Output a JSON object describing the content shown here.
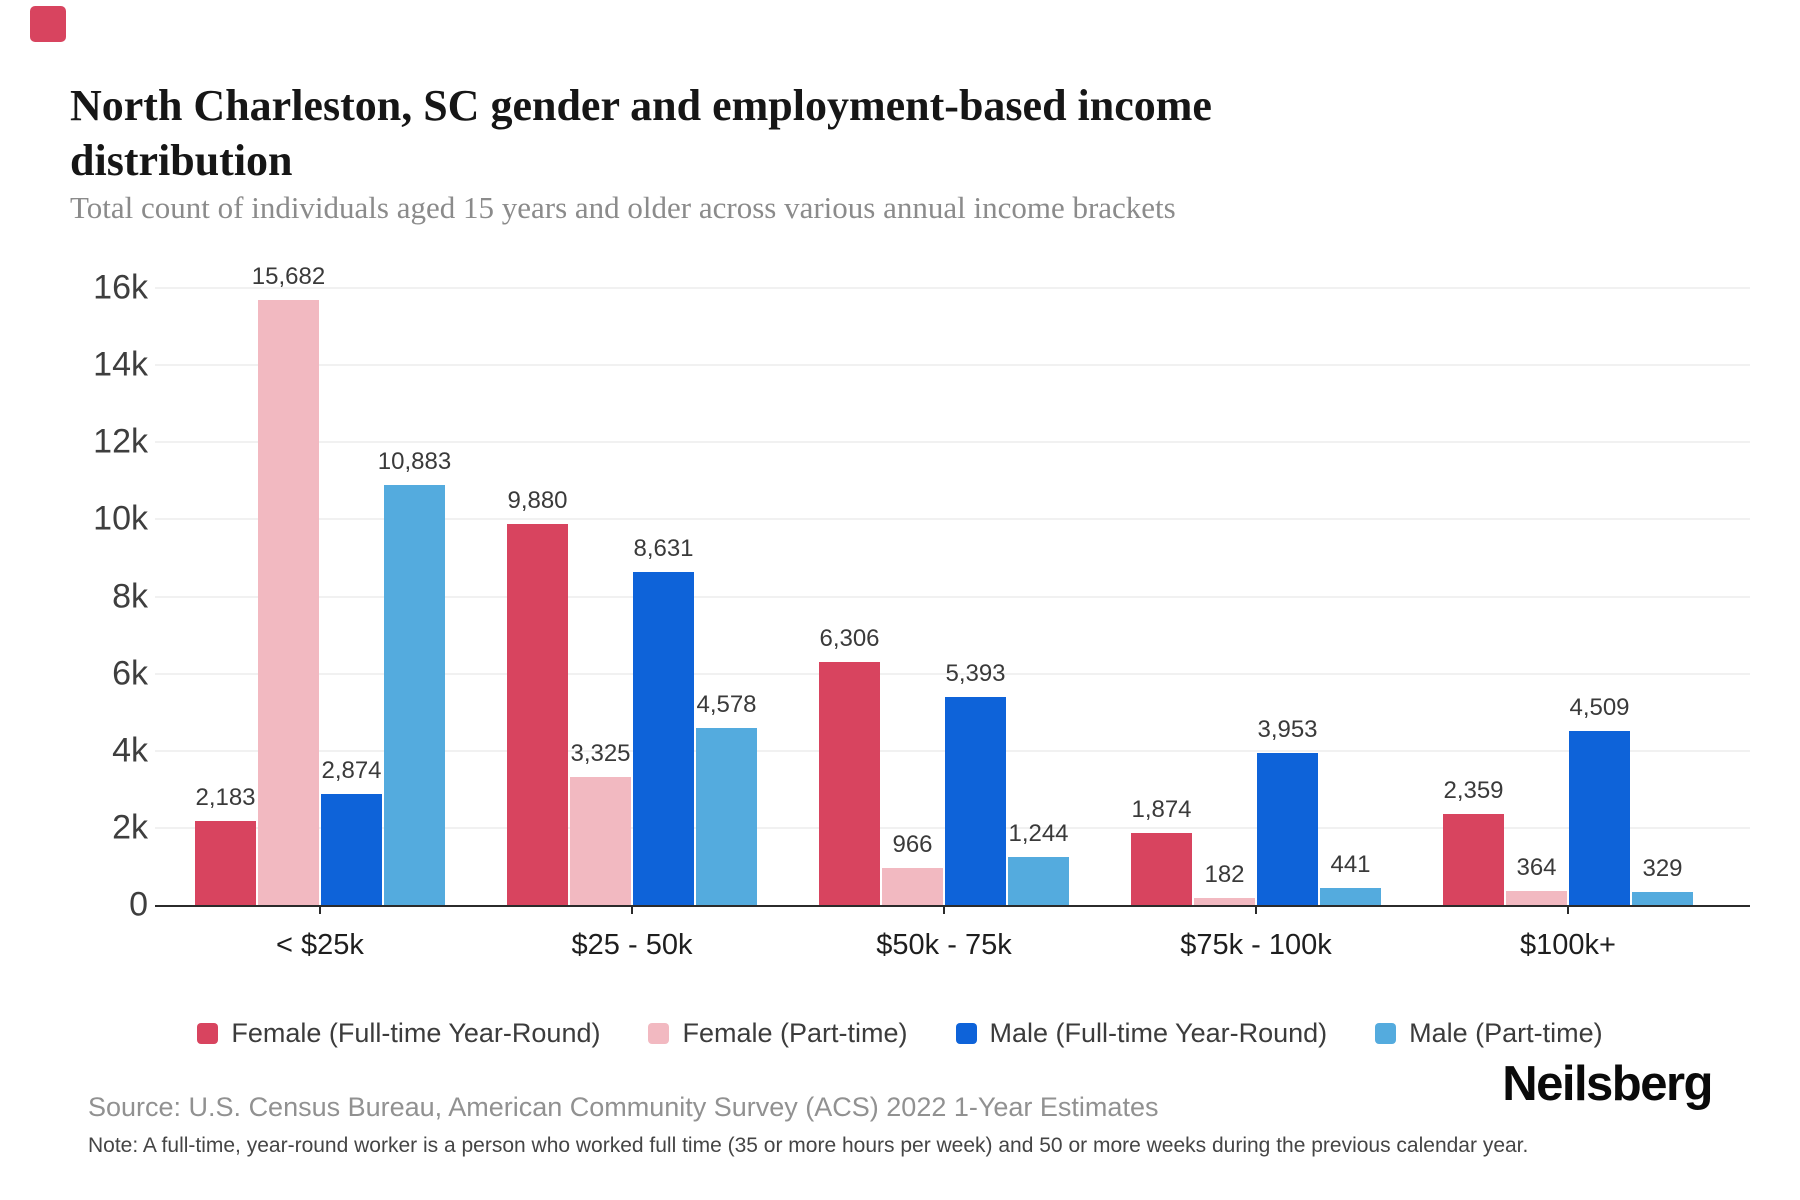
{
  "brand": {
    "accent_color": "#D8445F",
    "logo_text": "Neilsberg"
  },
  "chart_data": {
    "type": "bar",
    "title": "North Charleston, SC gender and employment-based income distribution",
    "subtitle": "Total count of individuals aged 15 years and older across various annual income brackets",
    "categories": [
      "< $25k",
      "$25 - 50k",
      "$50k - 75k",
      "$75k - 100k",
      "$100k+"
    ],
    "series": [
      {
        "name": "Female (Full-time Year-Round)",
        "color": "#D8445F",
        "values": [
          2183,
          9880,
          6306,
          1874,
          2359
        ]
      },
      {
        "name": "Female (Part-time)",
        "color": "#F2B9C1",
        "values": [
          15682,
          3325,
          966,
          182,
          364
        ]
      },
      {
        "name": "Male (Full-time Year-Round)",
        "color": "#0E63D9",
        "values": [
          2874,
          8631,
          5393,
          3953,
          4509
        ]
      },
      {
        "name": "Male (Part-time)",
        "color": "#54ABDE",
        "values": [
          10883,
          4578,
          1244,
          441,
          329
        ]
      }
    ],
    "ylim": [
      0,
      16000
    ],
    "y_ticks": [
      {
        "value": 0,
        "label": "0"
      },
      {
        "value": 2000,
        "label": "2k"
      },
      {
        "value": 4000,
        "label": "4k"
      },
      {
        "value": 6000,
        "label": "6k"
      },
      {
        "value": 8000,
        "label": "8k"
      },
      {
        "value": 10000,
        "label": "10k"
      },
      {
        "value": 12000,
        "label": "12k"
      },
      {
        "value": 14000,
        "label": "14k"
      },
      {
        "value": 16000,
        "label": "16k"
      }
    ],
    "grid": true,
    "legend_position": "bottom",
    "bar_value_labels": true
  },
  "footer": {
    "source": "Source: U.S. Census Bureau, American Community Survey (ACS) 2022 1-Year Estimates",
    "note": "Note: A full-time, year-round worker is a person who worked full time (35 or more hours per week) and 50 or more weeks during the previous calendar year."
  }
}
